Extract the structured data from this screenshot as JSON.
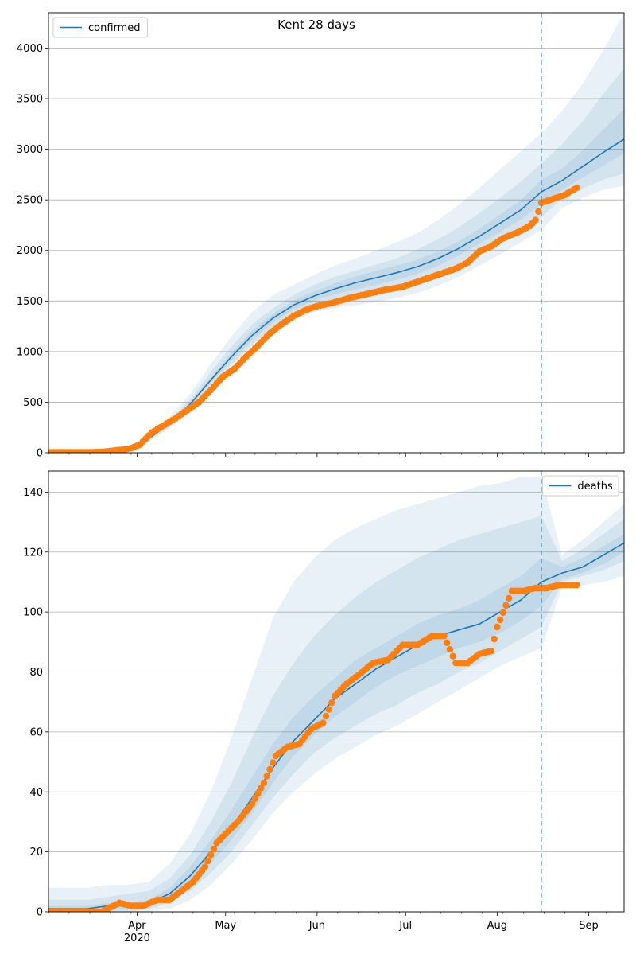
{
  "figure": {
    "title": "Kent 28 days",
    "colors": {
      "model_line": "#1f77b4",
      "band": "#1f77b4",
      "observed": "#ff7f0e",
      "grid": "#b0b0b0",
      "axes": "#000000"
    }
  },
  "chart_data": [
    {
      "type": "line",
      "title": "Kent 28 days",
      "legend": {
        "label": "confirmed",
        "placement": "top-left"
      },
      "ylim": [
        0,
        4350
      ],
      "yticks": [
        0,
        500,
        1000,
        1500,
        2000,
        2500,
        3000,
        3500,
        4000
      ],
      "xlim": [
        "2020-03-02",
        "2020-09-13"
      ],
      "grid": "y",
      "forecast_start": "2020-08-16",
      "model": {
        "x": [
          "2020-03-02",
          "2020-03-15",
          "2020-03-22",
          "2020-03-29",
          "2020-04-05",
          "2020-04-12",
          "2020-04-19",
          "2020-04-26",
          "2020-05-03",
          "2020-05-10",
          "2020-05-17",
          "2020-05-24",
          "2020-05-31",
          "2020-06-07",
          "2020-06-14",
          "2020-06-21",
          "2020-06-28",
          "2020-07-05",
          "2020-07-12",
          "2020-07-19",
          "2020-07-26",
          "2020-08-02",
          "2020-08-09",
          "2020-08-16",
          "2020-08-23",
          "2020-08-30",
          "2020-09-06",
          "2020-09-13"
        ],
        "median": [
          5,
          8,
          15,
          40,
          140,
          290,
          480,
          720,
          950,
          1160,
          1330,
          1460,
          1550,
          1620,
          1680,
          1730,
          1780,
          1840,
          1920,
          2020,
          2140,
          2270,
          2400,
          2580,
          2690,
          2830,
          2970,
          3100
        ],
        "bands": [
          {
            "lo": [
              0,
              2,
              8,
              28,
              110,
              240,
              410,
              620,
              820,
              1010,
              1180,
              1310,
              1390,
              1430,
              1460,
              1490,
              1530,
              1580,
              1650,
              1740,
              1850,
              1960,
              2080,
              2200,
              2420,
              2520,
              2600,
              2640
            ],
            "hi": [
              12,
              18,
              26,
              58,
              180,
              360,
              580,
              880,
              1150,
              1390,
              1560,
              1660,
              1760,
              1850,
              1920,
              2000,
              2080,
              2170,
              2300,
              2450,
              2620,
              2800,
              2980,
              3160,
              3380,
              3650,
              3980,
              4350
            ]
          },
          {
            "lo": [
              2,
              4,
              10,
              32,
              118,
              255,
              435,
              660,
              870,
              1070,
              1240,
              1370,
              1450,
              1500,
              1540,
              1580,
              1630,
              1690,
              1770,
              1860,
              1980,
              2090,
              2200,
              2330,
              2510,
              2610,
              2700,
              2760
            ],
            "hi": [
              9,
              13,
              21,
              49,
              160,
              325,
              530,
              800,
              1050,
              1270,
              1430,
              1560,
              1660,
              1740,
              1800,
              1860,
              1920,
              2010,
              2110,
              2230,
              2370,
              2520,
              2680,
              2860,
              3050,
              3280,
              3550,
              3800
            ]
          },
          {
            "lo": [
              4,
              6,
              12,
              36,
              128,
              272,
              458,
              690,
              910,
              1115,
              1285,
              1415,
              1505,
              1565,
              1615,
              1660,
              1710,
              1770,
              1850,
              1950,
              2065,
              2185,
              2305,
              2460,
              2600,
              2720,
              2840,
              2960
            ],
            "hi": [
              7,
              10,
              18,
              44,
              152,
              308,
              502,
              750,
              990,
              1205,
              1375,
              1505,
              1595,
              1675,
              1745,
              1800,
              1850,
              1910,
              1990,
              2090,
              2215,
              2355,
              2495,
              2700,
              2810,
              2990,
              3200,
              3400
            ]
          }
        ]
      },
      "observed": {
        "x": [
          "2020-03-02",
          "2020-03-09",
          "2020-03-16",
          "2020-03-20",
          "2020-03-24",
          "2020-03-27",
          "2020-03-30",
          "2020-04-02",
          "2020-04-06",
          "2020-04-10",
          "2020-04-14",
          "2020-04-18",
          "2020-04-22",
          "2020-04-26",
          "2020-04-30",
          "2020-05-04",
          "2020-05-08",
          "2020-05-12",
          "2020-05-16",
          "2020-05-20",
          "2020-05-24",
          "2020-05-28",
          "2020-06-01",
          "2020-06-06",
          "2020-06-12",
          "2020-06-18",
          "2020-06-24",
          "2020-06-30",
          "2020-07-06",
          "2020-07-12",
          "2020-07-18",
          "2020-07-22",
          "2020-07-26",
          "2020-07-30",
          "2020-08-03",
          "2020-08-08",
          "2020-08-12",
          "2020-08-14",
          "2020-08-16",
          "2020-08-20",
          "2020-08-24",
          "2020-08-28"
        ],
        "y": [
          5,
          5,
          5,
          8,
          20,
          30,
          45,
          80,
          200,
          270,
          340,
          420,
          500,
          620,
          750,
          830,
          950,
          1060,
          1180,
          1270,
          1350,
          1410,
          1450,
          1480,
          1530,
          1570,
          1610,
          1640,
          1700,
          1760,
          1820,
          1880,
          1990,
          2040,
          2120,
          2180,
          2240,
          2300,
          2470,
          2510,
          2550,
          2620
        ]
      }
    },
    {
      "type": "line",
      "legend": {
        "label": "deaths",
        "placement": "top-right"
      },
      "ylim": [
        0,
        147
      ],
      "yticks": [
        0,
        20,
        40,
        60,
        80,
        100,
        120,
        140
      ],
      "xlim": [
        "2020-03-02",
        "2020-09-13"
      ],
      "xticks": [
        {
          "date": "2020-04-01",
          "label": "Apr",
          "sublabel": "2020"
        },
        {
          "date": "2020-05-01",
          "label": "May"
        },
        {
          "date": "2020-06-01",
          "label": "Jun"
        },
        {
          "date": "2020-07-01",
          "label": "Jul"
        },
        {
          "date": "2020-08-01",
          "label": "Aug"
        },
        {
          "date": "2020-09-01",
          "label": "Sep"
        }
      ],
      "grid": "y",
      "forecast_start": "2020-08-16",
      "model": {
        "x": [
          "2020-03-02",
          "2020-03-15",
          "2020-03-22",
          "2020-03-29",
          "2020-04-05",
          "2020-04-12",
          "2020-04-19",
          "2020-04-26",
          "2020-05-03",
          "2020-05-10",
          "2020-05-17",
          "2020-05-24",
          "2020-05-31",
          "2020-06-07",
          "2020-06-14",
          "2020-06-21",
          "2020-06-28",
          "2020-07-05",
          "2020-07-12",
          "2020-07-19",
          "2020-07-26",
          "2020-08-02",
          "2020-08-09",
          "2020-08-16",
          "2020-08-23",
          "2020-08-30",
          "2020-09-06",
          "2020-09-13"
        ],
        "median": [
          1,
          1,
          2,
          2,
          3,
          6,
          12,
          20,
          28,
          38,
          48,
          57,
          64,
          71,
          76,
          81,
          85,
          89,
          92,
          94,
          96,
          100,
          104,
          110,
          113,
          115,
          119,
          123
        ],
        "bands": [
          {
            "lo": [
              0,
              0,
              0,
              0,
              0,
              1,
              4,
              9,
              16,
              24,
              33,
              40,
              46,
              51,
              55,
              59,
              62,
              66,
              70,
              74,
              78,
              82,
              85,
              88,
              108,
              109,
              110,
              112
            ],
            "hi": [
              8,
              8,
              9,
              9,
              10,
              16,
              26,
              40,
              58,
              78,
              98,
              110,
              118,
              124,
              128,
              131,
              134,
              136,
              138,
              140,
              142,
              143,
              145,
              145,
              119,
              124,
              130,
              136
            ]
          },
          {
            "lo": [
              0,
              0,
              0,
              0,
              1,
              3,
              7,
              13,
              20,
              29,
              38,
              46,
              53,
              58,
              62,
              66,
              69,
              73,
              76,
              80,
              83,
              87,
              91,
              95,
              110,
              112,
              114,
              117
            ],
            "hi": [
              4,
              4,
              5,
              6,
              7,
              11,
              19,
              30,
              43,
              58,
              72,
              83,
              92,
              99,
              105,
              110,
              114,
              118,
              121,
              124,
              126,
              128,
              130,
              132,
              117,
              121,
              126,
              131
            ]
          },
          {
            "lo": [
              0,
              0,
              1,
              1,
              2,
              4,
              9,
              16,
              24,
              33,
              43,
              52,
              59,
              65,
              70,
              75,
              79,
              82,
              85,
              88,
              90,
              93,
              97,
              102,
              111,
              113,
              116,
              120
            ],
            "hi": [
              2,
              2,
              3,
              3,
              4,
              8,
              15,
              24,
              34,
              45,
              56,
              65,
              72,
              78,
              84,
              88,
              92,
              96,
              99,
              101,
              104,
              108,
              112,
              118,
              115,
              118,
              122,
              126
            ]
          }
        ]
      },
      "observed": {
        "x": [
          "2020-03-02",
          "2020-03-12",
          "2020-03-20",
          "2020-03-26",
          "2020-03-30",
          "2020-04-03",
          "2020-04-08",
          "2020-04-12",
          "2020-04-16",
          "2020-04-20",
          "2020-04-24",
          "2020-04-28",
          "2020-05-02",
          "2020-05-06",
          "2020-05-10",
          "2020-05-14",
          "2020-05-18",
          "2020-05-22",
          "2020-05-26",
          "2020-05-30",
          "2020-06-03",
          "2020-06-07",
          "2020-06-11",
          "2020-06-15",
          "2020-06-20",
          "2020-06-25",
          "2020-06-30",
          "2020-07-05",
          "2020-07-10",
          "2020-07-14",
          "2020-07-18",
          "2020-07-22",
          "2020-07-26",
          "2020-07-30",
          "2020-08-01",
          "2020-08-06",
          "2020-08-10",
          "2020-08-14",
          "2020-08-18",
          "2020-08-22",
          "2020-08-26",
          "2020-08-28"
        ],
        "y": [
          0,
          0,
          0,
          3,
          2,
          2,
          4,
          4,
          7,
          10,
          15,
          23,
          27,
          31,
          36,
          43,
          52,
          55,
          56,
          61,
          63,
          72,
          76,
          79,
          83,
          84,
          89,
          89,
          92,
          92,
          83,
          83,
          86,
          87,
          95,
          107,
          107,
          108,
          108,
          109,
          109,
          109
        ]
      }
    }
  ]
}
